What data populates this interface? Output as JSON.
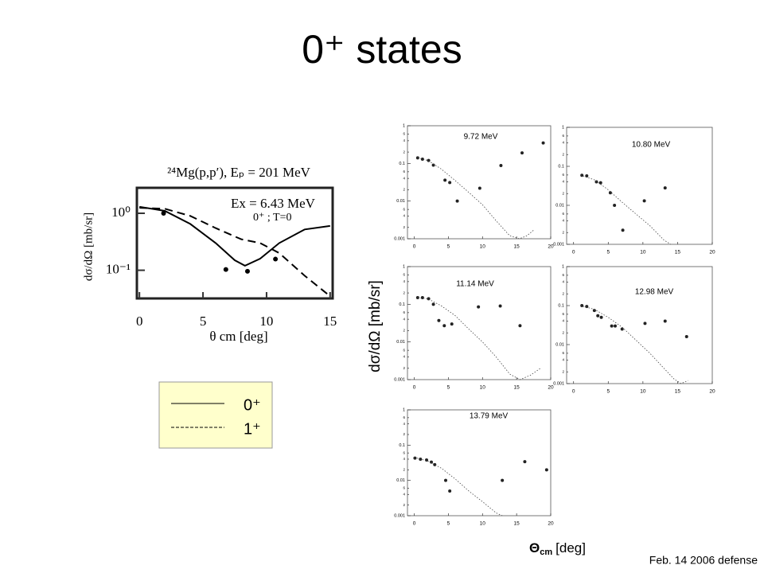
{
  "title": "0⁺ states",
  "footer": "Feb. 14 2006 defense",
  "ylabel": "dσ/dΩ [mb/sr]",
  "xlabel": {
    "symbol": "Θ",
    "sub": "cm",
    "unit": "[deg]"
  },
  "chart_data": [
    {
      "type": "line",
      "title": "²⁴Mg(p,p′), Eₚ = 201 MeV",
      "annotations": [
        "Ex = 6.43 MeV",
        "0⁺ ; T=0"
      ],
      "ylabel": "dσ/dΩ [mb/sr]",
      "xlabel": "θ cm [deg]",
      "log_y": true,
      "xlim": [
        -0.2,
        15.2
      ],
      "xticks": [
        0,
        5,
        10,
        15
      ],
      "ylim": [
        0.032,
        2.8
      ],
      "yticks": [
        {
          "value": 1,
          "label": "10⁰"
        },
        {
          "value": 0.1,
          "label": "10⁻¹"
        }
      ],
      "series": [
        {
          "name": "0⁺",
          "style": "solid",
          "color": "#000000",
          "x": [
            0,
            2,
            4,
            6,
            7.5,
            8.3,
            9.5,
            11,
            13,
            15
          ],
          "values": [
            1.3,
            1.1,
            0.65,
            0.3,
            0.15,
            0.12,
            0.16,
            0.3,
            0.52,
            0.6
          ]
        },
        {
          "name": "1⁺",
          "style": "dashed",
          "color": "#000000",
          "x": [
            0,
            2,
            4,
            6,
            8,
            9.5,
            11,
            13,
            15
          ],
          "values": [
            1.25,
            1.2,
            0.9,
            0.55,
            0.35,
            0.3,
            0.2,
            0.08,
            0.035
          ]
        },
        {
          "style": "points",
          "color": "#000000",
          "x": [
            1.9,
            6.8,
            8.5,
            10.7
          ],
          "values": [
            1.0,
            0.103,
            0.096,
            0.157
          ]
        }
      ]
    },
    {
      "type": "scatter",
      "title": "9.72 MeV",
      "log_y": true,
      "xlim": [
        -1,
        20
      ],
      "xticks": [
        0,
        5,
        10,
        15,
        20
      ],
      "ylim": [
        0.001,
        1
      ],
      "yticks": [
        1,
        {
          "value": 0.6,
          "label": "6"
        },
        {
          "value": 0.4,
          "label": "4"
        },
        {
          "value": 0.2,
          "label": "2"
        },
        0.1,
        {
          "value": 0.06,
          "label": "6"
        },
        {
          "value": 0.04,
          "label": "4"
        },
        {
          "value": 0.02,
          "label": "2"
        },
        0.01,
        {
          "value": 0.006,
          "label": "6"
        },
        {
          "value": 0.004,
          "label": "4"
        },
        {
          "value": 0.002,
          "label": "2"
        },
        0.001
      ],
      "series": [
        {
          "style": "points",
          "color": "#222222",
          "x": [
            0.5,
            1.2,
            2.1,
            2.8,
            4.5,
            5.2,
            6.3,
            9.6,
            12.7,
            15.8,
            18.9
          ],
          "values": [
            0.14,
            0.13,
            0.12,
            0.09,
            0.036,
            0.031,
            0.01,
            0.022,
            0.088,
            0.19,
            0.35
          ]
        },
        {
          "style": "dotted",
          "color": "#444444",
          "x": [
            0.5,
            2,
            4,
            6,
            8,
            10,
            12,
            14,
            15.4,
            16.5,
            17.5
          ],
          "values": [
            0.14,
            0.12,
            0.07,
            0.035,
            0.017,
            0.008,
            0.003,
            0.0012,
            0.001,
            0.0012,
            0.0017
          ]
        }
      ]
    },
    {
      "type": "scatter",
      "title": "10.80 MeV",
      "log_y": true,
      "xlim": [
        -1,
        20
      ],
      "xticks": [
        0,
        5,
        10,
        15,
        20
      ],
      "ylim": [
        0.001,
        1
      ],
      "yticks": [
        1,
        {
          "value": 0.6,
          "label": "6"
        },
        {
          "value": 0.4,
          "label": "4"
        },
        {
          "value": 0.2,
          "label": "2"
        },
        0.1,
        {
          "value": 0.06,
          "label": "6"
        },
        {
          "value": 0.04,
          "label": "4"
        },
        {
          "value": 0.02,
          "label": "2"
        },
        0.01,
        {
          "value": 0.006,
          "label": "6"
        },
        {
          "value": 0.004,
          "label": "4"
        },
        {
          "value": 0.002,
          "label": "2"
        },
        0.001
      ],
      "series": [
        {
          "style": "points",
          "color": "#222222",
          "x": [
            1.2,
            1.9,
            3.3,
            3.9,
            5.3,
            5.9,
            7.1,
            10.2,
            13.2
          ],
          "values": [
            0.059,
            0.057,
            0.04,
            0.038,
            0.021,
            0.01,
            0.0023,
            0.013,
            0.028
          ]
        },
        {
          "style": "dotted",
          "color": "#444444",
          "x": [
            1,
            3,
            5,
            7,
            9,
            11,
            13,
            14
          ],
          "values": [
            0.06,
            0.045,
            0.025,
            0.012,
            0.006,
            0.003,
            0.0013,
            0.001
          ]
        }
      ]
    },
    {
      "type": "scatter",
      "title": "11.14 MeV",
      "log_y": true,
      "xlim": [
        -1,
        20
      ],
      "xticks": [
        0,
        5,
        10,
        15,
        20
      ],
      "ylim": [
        0.001,
        1
      ],
      "yticks": [
        1,
        {
          "value": 0.6,
          "label": "6"
        },
        {
          "value": 0.4,
          "label": "4"
        },
        {
          "value": 0.2,
          "label": "2"
        },
        0.1,
        {
          "value": 0.06,
          "label": "6"
        },
        {
          "value": 0.04,
          "label": "4"
        },
        {
          "value": 0.02,
          "label": "2"
        },
        0.01,
        {
          "value": 0.006,
          "label": "6"
        },
        {
          "value": 0.004,
          "label": "4"
        },
        {
          "value": 0.002,
          "label": "2"
        },
        0.001
      ],
      "series": [
        {
          "style": "points",
          "color": "#222222",
          "x": [
            0.5,
            1.2,
            2.1,
            2.8,
            3.6,
            4.4,
            5.5,
            9.4,
            12.6,
            15.5
          ],
          "values": [
            0.15,
            0.15,
            0.14,
            0.1,
            0.037,
            0.027,
            0.03,
            0.085,
            0.09,
            0.027
          ]
        },
        {
          "style": "dotted",
          "color": "#444444",
          "x": [
            0.5,
            2,
            4,
            6,
            8,
            10,
            12,
            14,
            15.5,
            17,
            18.5
          ],
          "values": [
            0.15,
            0.14,
            0.09,
            0.05,
            0.022,
            0.01,
            0.004,
            0.0014,
            0.001,
            0.0013,
            0.002
          ]
        }
      ]
    },
    {
      "type": "scatter",
      "title": "12.98 MeV",
      "log_y": true,
      "xlim": [
        -1,
        20
      ],
      "xticks": [
        0,
        5,
        10,
        15,
        20
      ],
      "ylim": [
        0.001,
        1
      ],
      "yticks": [
        1,
        {
          "value": 0.6,
          "label": "6"
        },
        {
          "value": 0.4,
          "label": "4"
        },
        {
          "value": 0.2,
          "label": "2"
        },
        0.1,
        {
          "value": 0.06,
          "label": "6"
        },
        {
          "value": 0.04,
          "label": "4"
        },
        {
          "value": 0.02,
          "label": "2"
        },
        0.01,
        {
          "value": 0.006,
          "label": "6"
        },
        {
          "value": 0.004,
          "label": "4"
        },
        {
          "value": 0.002,
          "label": "2"
        },
        0.001
      ],
      "series": [
        {
          "style": "points",
          "color": "#222222",
          "x": [
            1.2,
            1.9,
            3,
            3.5,
            4,
            5.5,
            6,
            7,
            10.3,
            13.2,
            16.3
          ],
          "values": [
            0.1,
            0.095,
            0.075,
            0.055,
            0.05,
            0.03,
            0.03,
            0.025,
            0.035,
            0.04,
            0.016
          ]
        },
        {
          "style": "dotted",
          "color": "#444444",
          "x": [
            1,
            3,
            5,
            7,
            9,
            11,
            13,
            14.5,
            15.5,
            16.5
          ],
          "values": [
            0.1,
            0.08,
            0.05,
            0.028,
            0.013,
            0.006,
            0.0025,
            0.0013,
            0.001,
            0.0012
          ]
        }
      ]
    },
    {
      "type": "scatter",
      "title": "13.79 MeV",
      "log_y": true,
      "xlim": [
        -1,
        20
      ],
      "xticks": [
        0,
        5,
        10,
        15,
        20
      ],
      "ylim": [
        0.001,
        1
      ],
      "yticks": [
        1,
        {
          "value": 0.6,
          "label": "6"
        },
        {
          "value": 0.4,
          "label": "4"
        },
        {
          "value": 0.2,
          "label": "2"
        },
        0.1,
        {
          "value": 0.06,
          "label": "6"
        },
        {
          "value": 0.04,
          "label": "4"
        },
        {
          "value": 0.02,
          "label": "2"
        },
        0.01,
        {
          "value": 0.006,
          "label": "6"
        },
        {
          "value": 0.004,
          "label": "4"
        },
        {
          "value": 0.002,
          "label": "2"
        },
        0.001
      ],
      "series": [
        {
          "style": "points",
          "color": "#222222",
          "x": [
            0.1,
            0.9,
            1.8,
            2.5,
            3,
            4.6,
            5.2,
            12.9,
            16.2,
            19.4
          ],
          "values": [
            0.043,
            0.04,
            0.038,
            0.033,
            0.028,
            0.01,
            0.005,
            0.01,
            0.034,
            0.02
          ]
        },
        {
          "style": "dotted",
          "color": "#444444",
          "x": [
            0,
            2,
            4,
            6,
            8,
            10,
            12,
            12.9
          ],
          "values": [
            0.045,
            0.035,
            0.022,
            0.011,
            0.005,
            0.0025,
            0.0012,
            0.001
          ]
        }
      ]
    }
  ]
}
